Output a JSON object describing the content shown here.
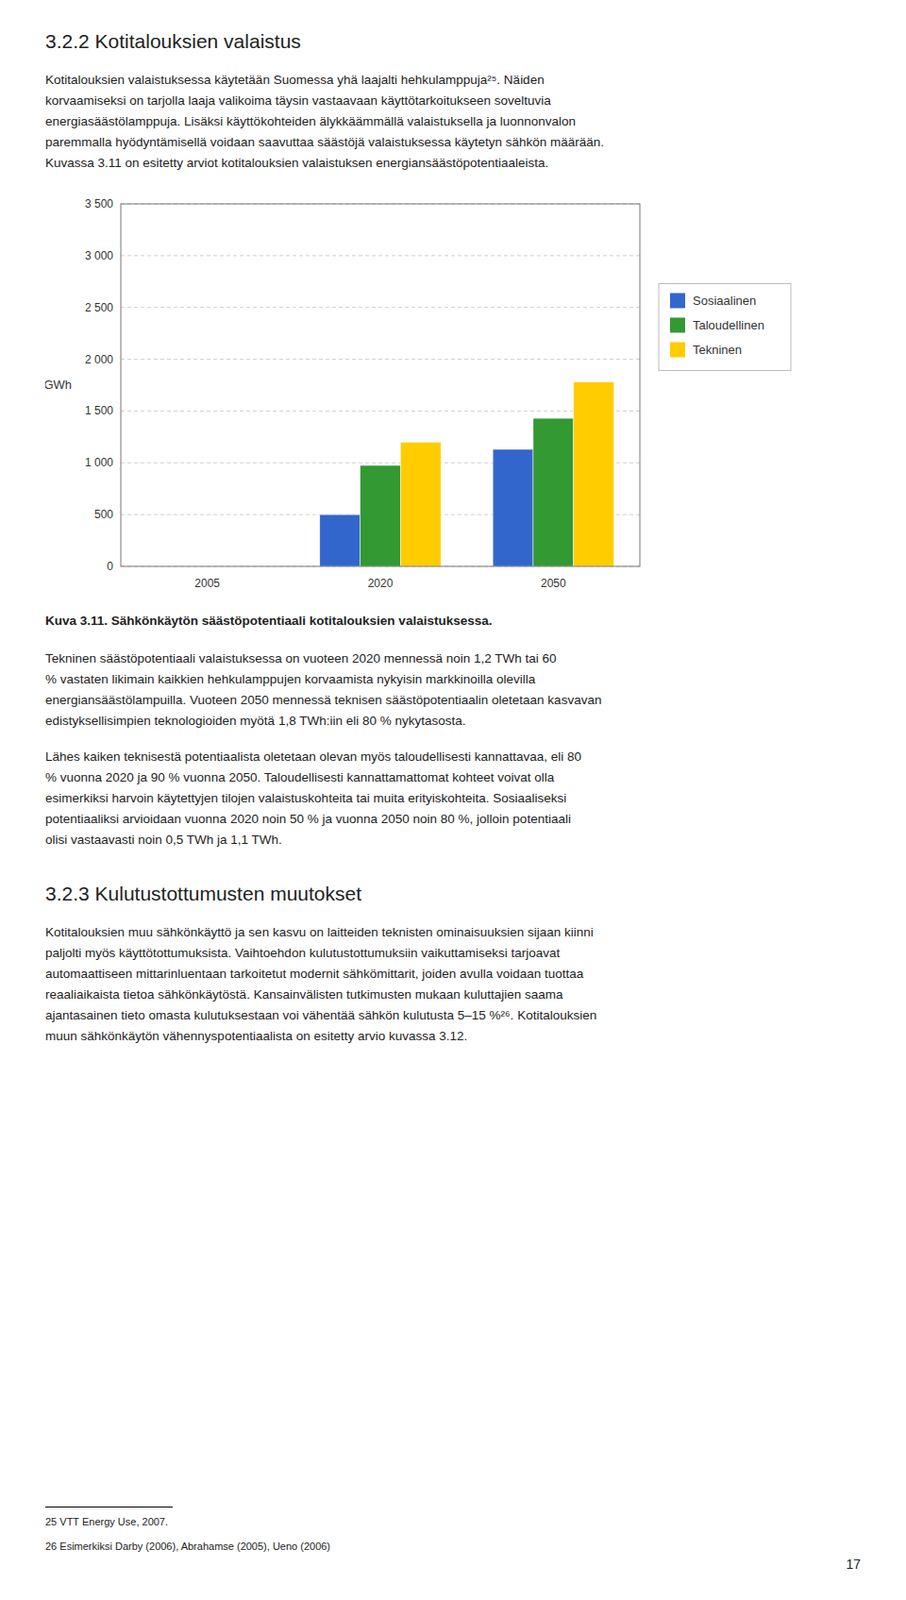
{
  "chart_data": {
    "type": "bar",
    "title": "Kuva 3.11. Sähkönkäytön säästöpotentiaali kotitalouksien valaistuksessa.",
    "categories": [
      "2005",
      "2020",
      "2050"
    ],
    "series": [
      {
        "name": "Sosiaalinen",
        "color": "#3366CC",
        "values": [
          0,
          500,
          1130
        ]
      },
      {
        "name": "Taloudellinen",
        "color": "#339933",
        "values": [
          0,
          975,
          1430
        ]
      },
      {
        "name": "Tekninen",
        "color": "#FFCC00",
        "values": [
          0,
          1200,
          1780
        ]
      }
    ],
    "ylabel": "GWh",
    "ylim": [
      0,
      3500
    ],
    "yticks": [
      0,
      500,
      {
        "value": 1000,
        "label": "1 000"
      },
      {
        "value": 1500,
        "label": "1 500"
      },
      {
        "value": 2000,
        "label": "2 000"
      },
      {
        "value": 2500,
        "label": "2 500"
      },
      {
        "value": 3000,
        "label": "3 000"
      },
      {
        "value": 3500,
        "label": "3 500"
      }
    ],
    "grid": true,
    "legend": "right"
  },
  "page": {
    "heading": "3.2.2 Kotitalouksien valaistus",
    "paragraphs_before": [
      [
        "Kotitalouksien valaistuksessa käytetään Suomessa yhä laajalti hehkulamppuja²⁵. Näiden",
        "korvaamiseksi on tarjolla laaja valikoima täysin vastaavaan käyttötarkoitukseen soveltuvia",
        "energiasäästölamppuja. Lisäksi käyttökohteiden älykkäämmällä valaistuksella ja luonnonvalon",
        "paremmalla hyödyntämisellä voidaan saavuttaa säästöjä valaistuksessa käytetyn sähkön määrään.",
        "Kuvassa 3.11 on esitetty arviot kotitalouksien valaistuksen energiansäästöpotentiaaleista."
      ]
    ],
    "paragraphs_after": [
      [
        "Tekninen säästöpotentiaali valaistuksessa on vuoteen 2020 mennessä noin 1,2 TWh tai 60",
        "% vastaten likimain kaikkien hehkulamppujen korvaamista nykyisin markkinoilla olevilla",
        "energiansäästölampuilla. Vuoteen 2050 mennessä teknisen säästöpotentiaalin oletetaan kasvavan",
        "edistyksellisimpien teknologioiden myötä 1,8 TWh:iin eli 80 % nykytasosta."
      ],
      [
        "Lähes kaiken teknisestä potentiaalista oletetaan olevan myös taloudellisesti kannattavaa, eli 80",
        "% vuonna 2020 ja 90 % vuonna 2050. Taloudellisesti kannattamattomat kohteet voivat olla",
        "esimerkiksi harvoin käytettyjen tilojen valaistuskohteita tai muita erityiskohteita. Sosiaaliseksi",
        "potentiaaliksi arvioidaan vuonna 2020 noin 50 % ja vuonna 2050 noin 80 %, jolloin potentiaali",
        "olisi vastaavasti noin 0,5 TWh ja 1,1 TWh."
      ]
    ],
    "section_heading": "3.2.3 Kulutustottumusten muutokset",
    "section_paragraphs": [
      [
        "Kotitalouksien muu sähkönkäyttö ja sen kasvu on laitteiden teknisten ominaisuuksien sijaan kiinni",
        "paljolti myös käyttötottumuksista. Vaihtoehdon kulutustottumuksiin vaikuttamiseksi tarjoavat",
        "automaattiseen mittarinluentaan tarkoitetut modernit sähkömittarit, joiden avulla voidaan tuottaa",
        "reaaliaikaista tietoa sähkönkäytöstä. Kansainvälisten tutkimusten mukaan kuluttajien saama",
        "ajantasainen tieto omasta kulutuksestaan voi vähentää sähkön kulutusta 5–15 %²⁶. Kotitalouksien",
        "muun sähkönkäytön vähennyspotentiaalista on esitetty arvio kuvassa 3.12."
      ]
    ],
    "footnotes": [
      "25 VTT Energy Use, 2007.",
      "26 Esimerkiksi Darby (2006), Abrahamse (2005), Ueno (2006)"
    ],
    "page_number": "17"
  }
}
